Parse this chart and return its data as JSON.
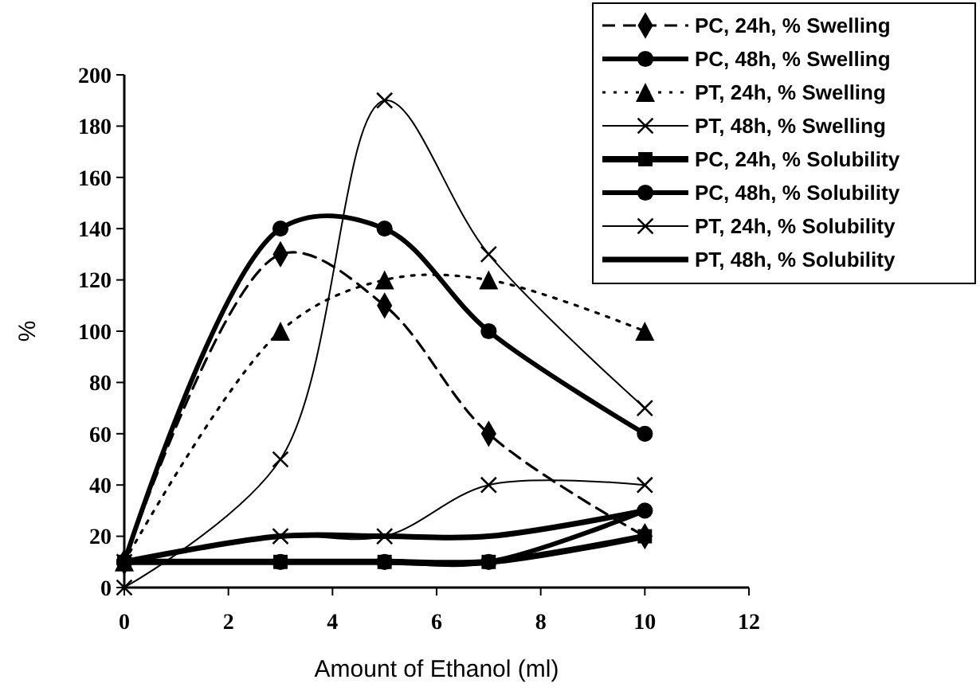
{
  "chart_data": {
    "type": "line",
    "xlabel": "Amount of Ethanol (ml)",
    "ylabel": "%",
    "x": [
      0,
      3,
      5,
      7,
      10
    ],
    "xlim": [
      0,
      12
    ],
    "xticks": [
      0,
      2,
      4,
      6,
      8,
      10,
      12
    ],
    "ylim": [
      0,
      200
    ],
    "yticks": [
      0,
      20,
      40,
      60,
      80,
      100,
      120,
      140,
      160,
      180,
      200
    ],
    "grid": false,
    "legend": "top right",
    "series": [
      {
        "name": "PC, 24h, % Swelling",
        "color": "#000000",
        "values": [
          10,
          130,
          110,
          60,
          20
        ],
        "marker": "diamond",
        "line_style": "dashed"
      },
      {
        "name": "PC, 48h, % Swelling",
        "color": "#000000",
        "values": [
          10,
          140,
          140,
          100,
          60
        ],
        "marker": "circle",
        "line_style": "solid"
      },
      {
        "name": "PT, 24h, % Swelling",
        "color": "#000000",
        "values": [
          10,
          100,
          120,
          120,
          100
        ],
        "marker": "triangle",
        "line_style": "dotted"
      },
      {
        "name": "PT, 48h, % Swelling",
        "color": "#000000",
        "values": [
          0,
          50,
          190,
          130,
          70
        ],
        "marker": "cross",
        "line_style": "solid"
      },
      {
        "name": "PC, 24h, % Solubility",
        "color": "#000000",
        "values": [
          10,
          10,
          10,
          10,
          20
        ],
        "marker": "square",
        "line_style": "solid"
      },
      {
        "name": "PC, 48h, % Solubility",
        "color": "#000000",
        "values": [
          10,
          10,
          10,
          10,
          30
        ],
        "marker": "circle",
        "line_style": "solid"
      },
      {
        "name": "PT, 24h, % Solubility",
        "color": "#000000",
        "values": [
          10,
          20,
          20,
          40,
          40
        ],
        "marker": "cross",
        "line_style": "solid"
      },
      {
        "name": "PT, 48h, % Solubility",
        "color": "#000000",
        "values": [
          10,
          20,
          20,
          20,
          30
        ],
        "marker": "none",
        "line_style": "solid"
      }
    ]
  }
}
